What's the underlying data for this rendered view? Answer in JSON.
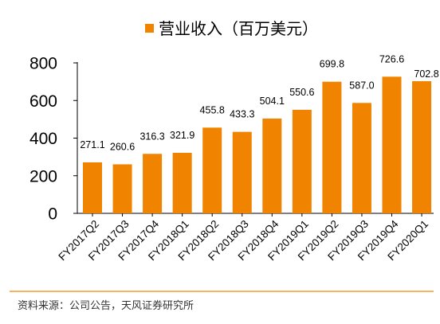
{
  "legend": {
    "label": "营业收入（百万美元）",
    "color": "#F08300"
  },
  "source": "资料来源：公司公告，天风证券研究所",
  "colors": {
    "bar": "#F08300",
    "rule": "#F08300"
  },
  "chart_data": {
    "type": "bar",
    "categories": [
      "FY2017Q2",
      "FY2017Q3",
      "FY2017Q4",
      "FY2018Q1",
      "FY2018Q2",
      "FY2018Q3",
      "FY2018Q4",
      "FY2019Q1",
      "FY2019Q2",
      "FY2019Q3",
      "FY2019Q4",
      "FY2020Q1"
    ],
    "series": [
      {
        "name": "营业收入（百万美元）",
        "values": [
          271.1,
          260.6,
          316.3,
          321.9,
          455.8,
          433.3,
          504.1,
          550.6,
          699.8,
          587.0,
          726.6,
          702.8
        ],
        "labels": [
          "271.1",
          "260.6",
          "316.3",
          "321.9",
          "455.8",
          "433.3",
          "504.1",
          "550.6",
          "699.8",
          "587.0",
          "726.6",
          "702.8"
        ]
      }
    ],
    "yticks": [
      0,
      200,
      400,
      600,
      800
    ],
    "ylim": [
      0,
      800
    ],
    "grid": false,
    "legend_position": "top"
  }
}
